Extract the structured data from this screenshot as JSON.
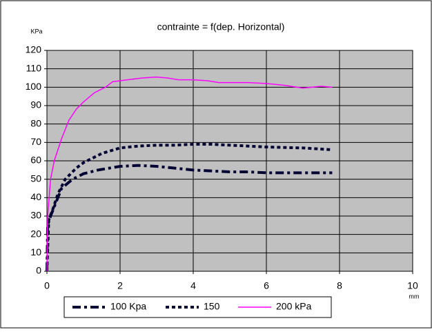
{
  "chart_data": {
    "type": "line",
    "title": "contrainte = f(dep. Horizontal)",
    "y_label": "KPa",
    "x_label": "mm",
    "xlim": [
      0,
      10
    ],
    "xticks": [
      0,
      2,
      4,
      6,
      8,
      10
    ],
    "ylim": [
      0,
      120
    ],
    "yticks": [
      0,
      10,
      20,
      30,
      40,
      50,
      60,
      70,
      80,
      90,
      100,
      110,
      120
    ],
    "grid": true,
    "legend": "bottom",
    "series": [
      {
        "name": "100 Kpa",
        "color": "#000033",
        "style": "dashdot",
        "x": [
          0,
          0.02,
          0.1,
          0.2,
          0.4,
          0.7,
          1,
          1.4,
          2,
          2.5,
          3,
          3.5,
          4,
          4.5,
          5,
          5.5,
          6,
          7,
          7.8
        ],
        "values": [
          0,
          25,
          30,
          35,
          45,
          50,
          53,
          55,
          57,
          57.5,
          57,
          56,
          55,
          54.5,
          54,
          54,
          53.5,
          53.5,
          53.5
        ]
      },
      {
        "name": "150",
        "color": "#000033",
        "style": "dotted",
        "x": [
          0,
          0.05,
          0.15,
          0.3,
          0.5,
          0.8,
          1,
          1.5,
          2,
          2.5,
          3,
          3.5,
          4,
          4.5,
          5,
          5.5,
          6,
          7,
          7.8
        ],
        "values": [
          0,
          28,
          33,
          42,
          50,
          56,
          59,
          64,
          67,
          68,
          68.5,
          68.5,
          69,
          69,
          68.5,
          68,
          67.5,
          67,
          66
        ]
      },
      {
        "name": "200 kPa",
        "color": "#ff00ff",
        "style": "solid",
        "x": [
          0,
          0.02,
          0.1,
          0.2,
          0.4,
          0.6,
          0.8,
          1,
          1.3,
          1.6,
          1.8,
          2.2,
          2.6,
          3,
          3.3,
          3.6,
          4,
          4.4,
          4.7,
          5,
          5.5,
          6,
          6.5,
          7,
          7.5,
          7.8
        ],
        "values": [
          0,
          30,
          50,
          60,
          72,
          82,
          88,
          92,
          97,
          100,
          103,
          104,
          105,
          105.5,
          105,
          104,
          104,
          103.5,
          102.5,
          102.5,
          102.5,
          102,
          101,
          99.5,
          100.5,
          100
        ]
      }
    ]
  }
}
